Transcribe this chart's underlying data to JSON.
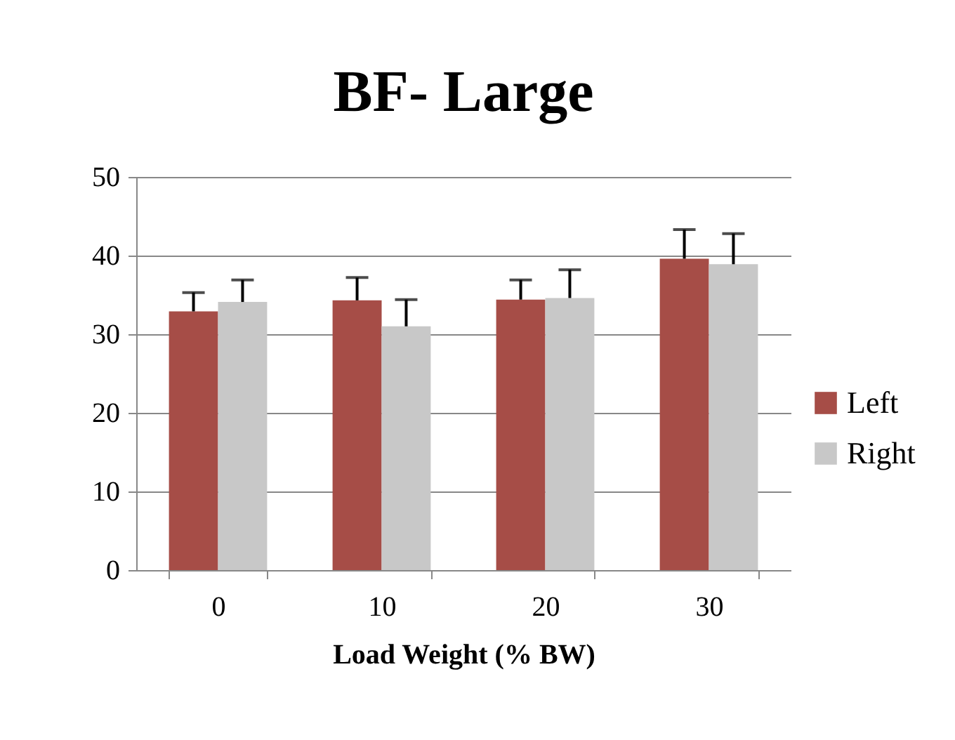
{
  "chart_data": {
    "type": "bar",
    "title": "BF- Large",
    "xlabel": "Load Weight (% BW)",
    "categories": [
      "0",
      "10",
      "20",
      "30"
    ],
    "series": [
      {
        "name": "Left",
        "color": "#a64d47",
        "values": [
          32.9,
          34.3,
          34.4,
          39.6
        ],
        "errors": [
          [
            32.9,
            35.3
          ],
          [
            34.3,
            37.2
          ],
          [
            34.4,
            36.9
          ],
          [
            39.6,
            43.3
          ]
        ]
      },
      {
        "name": "Right",
        "color": "#c8c8c8",
        "values": [
          34.1,
          31.0,
          34.6,
          38.9
        ],
        "errors": [
          [
            34.1,
            36.9
          ],
          [
            31.0,
            34.4
          ],
          [
            34.6,
            38.2
          ],
          [
            38.9,
            42.8
          ]
        ]
      }
    ],
    "ylim": [
      0,
      50
    ],
    "yticks": [
      0,
      10,
      20,
      30,
      40,
      50
    ],
    "grid": "y",
    "legend": "right"
  }
}
